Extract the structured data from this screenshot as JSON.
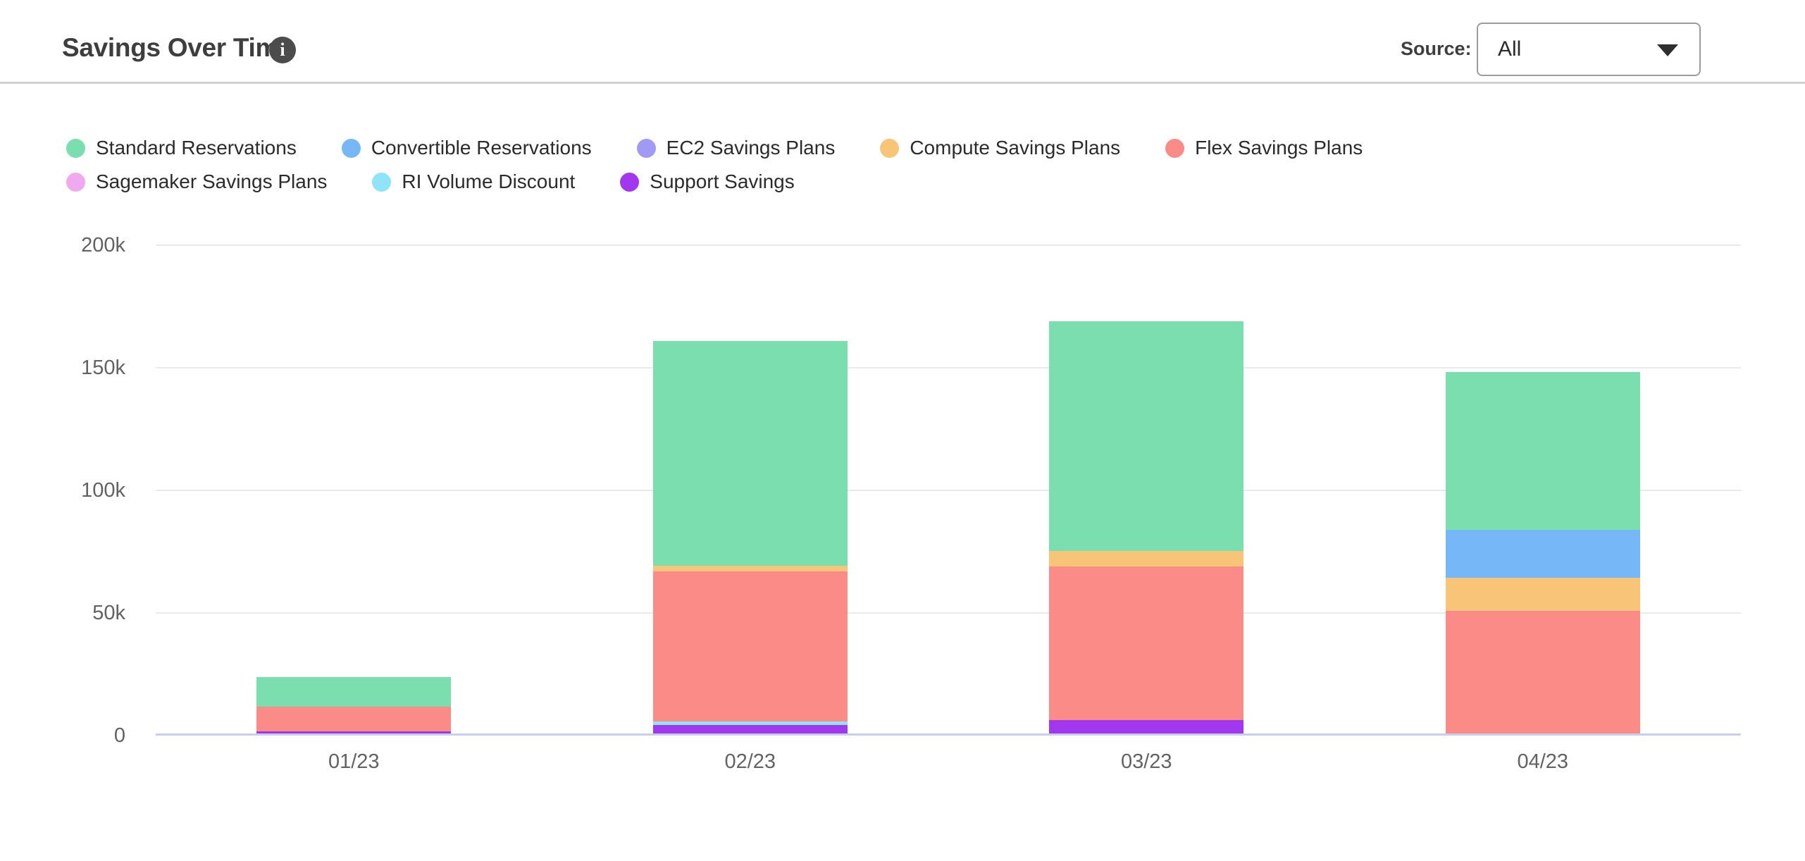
{
  "header": {
    "title": "Savings Over Time",
    "info_glyph": "i",
    "source_label": "Source:",
    "source_value": "All"
  },
  "chart_data": {
    "type": "bar",
    "stacked": true,
    "title": "Savings Over Time",
    "categories": [
      "01/23",
      "02/23",
      "03/23",
      "04/23"
    ],
    "series": [
      {
        "name": "Standard Reservations",
        "color": "#7BDEAF",
        "values": [
          12000,
          91500,
          93500,
          64500
        ]
      },
      {
        "name": "Convertible Reservations",
        "color": "#76B7F8",
        "values": [
          0,
          0,
          0,
          19500
        ]
      },
      {
        "name": "EC2 Savings Plans",
        "color": "#A09AF5",
        "values": [
          0,
          0,
          0,
          0
        ]
      },
      {
        "name": "Compute Savings Plans",
        "color": "#F8C478",
        "values": [
          0,
          2500,
          6500,
          13500
        ]
      },
      {
        "name": "Flex Savings Plans",
        "color": "#FB8B87",
        "values": [
          10000,
          61000,
          62500,
          50000
        ]
      },
      {
        "name": "Sagemaker Savings Plans",
        "color": "#EFAAEF",
        "values": [
          0,
          0,
          0,
          0
        ]
      },
      {
        "name": "RI Volume Discount",
        "color": "#8FE4F9",
        "values": [
          0,
          1500,
          0,
          0
        ]
      },
      {
        "name": "Support Savings",
        "color": "#A138F0",
        "values": [
          1000,
          3500,
          5500,
          0
        ]
      }
    ],
    "totals": [
      23000,
      160000,
      168000,
      147500
    ],
    "stack_order_bottom_to_top": [
      "Support Savings",
      "RI Volume Discount",
      "Sagemaker Savings Plans",
      "Flex Savings Plans",
      "Compute Savings Plans",
      "EC2 Savings Plans",
      "Convertible Reservations",
      "Standard Reservations"
    ],
    "legend_rows": [
      [
        0,
        1,
        2,
        3,
        4
      ],
      [
        5,
        6,
        7
      ]
    ],
    "legend_position": "top",
    "xlabel": "",
    "ylabel": "",
    "ylim": [
      0,
      200000
    ],
    "yticks": [
      {
        "label": "0",
        "value": 0
      },
      {
        "label": "50k",
        "value": 50000
      },
      {
        "label": "100k",
        "value": 100000
      },
      {
        "label": "150k",
        "value": 150000
      },
      {
        "label": "200k",
        "value": 200000
      }
    ],
    "grid": true,
    "axis_colors": {
      "gridline": "#EAEAEA",
      "baseline": "#C7D0E6",
      "tick_text": "#626262"
    }
  }
}
